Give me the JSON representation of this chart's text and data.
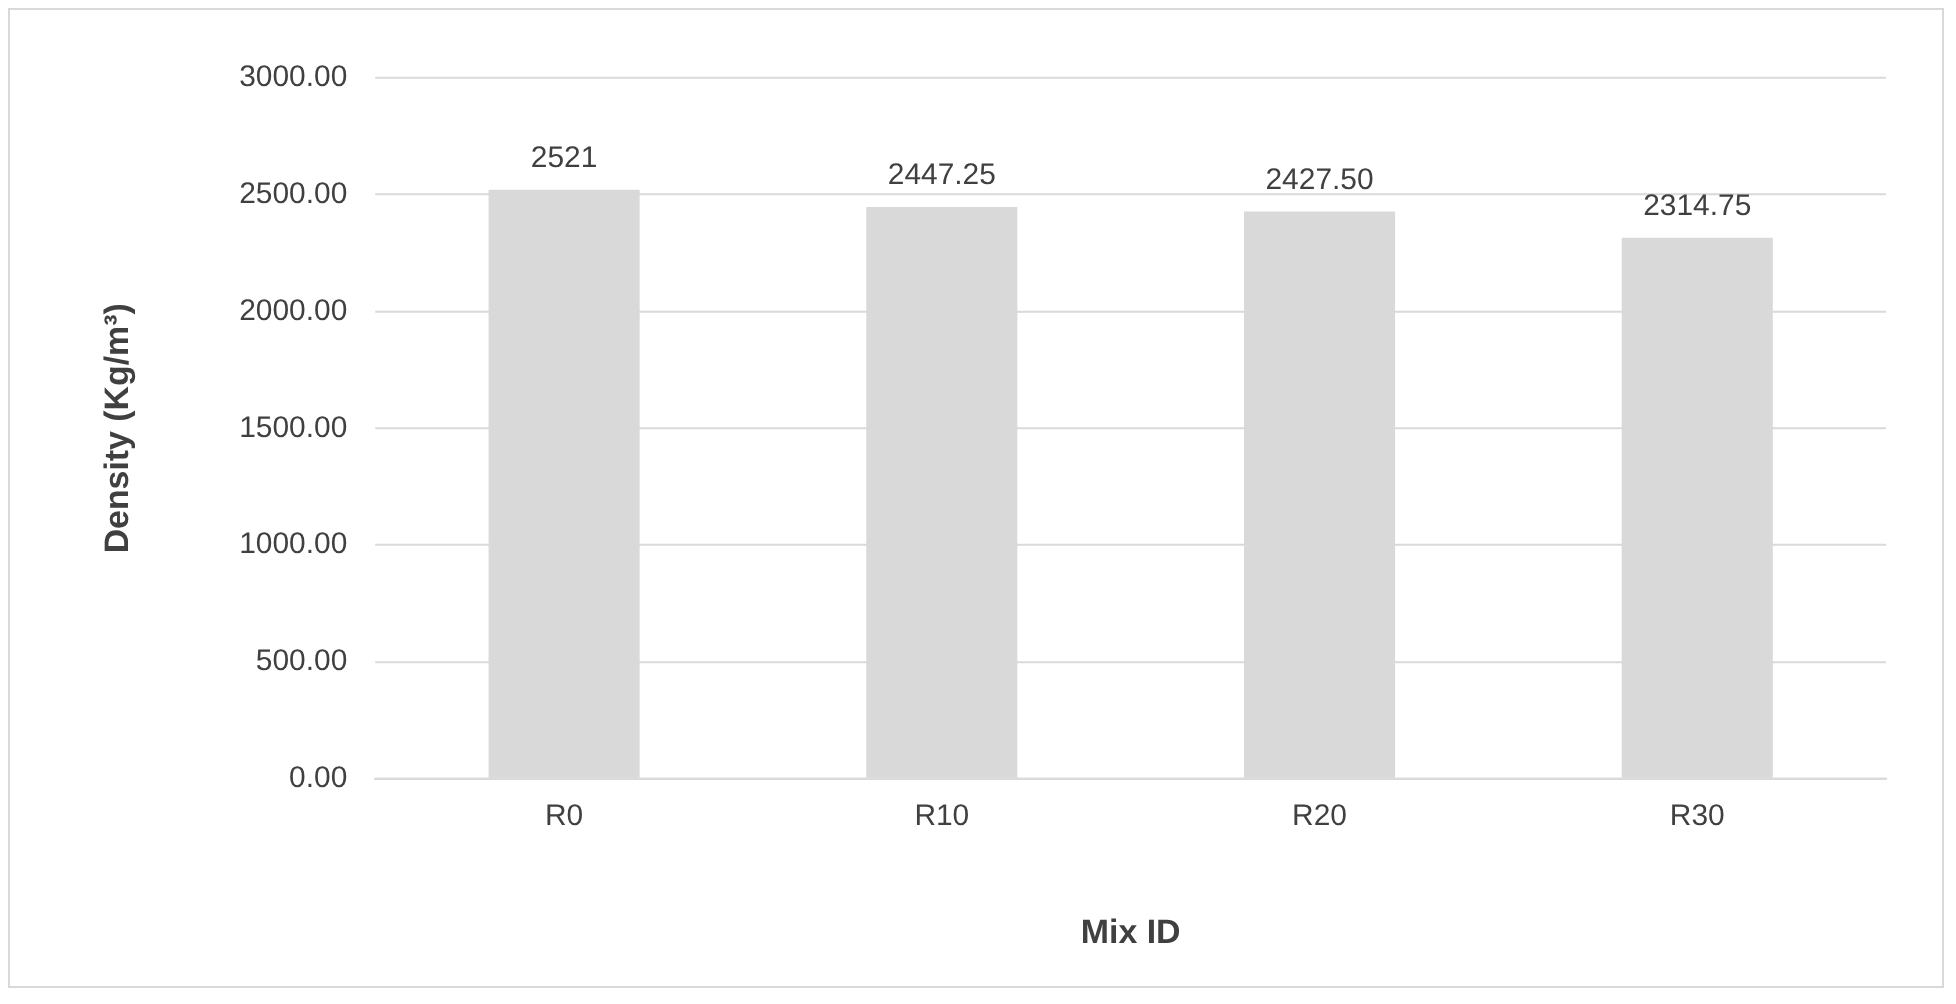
{
  "chart_data": {
    "type": "bar",
    "xlabel": "Mix ID",
    "ylabel": "Density (Kg/m³)",
    "categories": [
      "R0",
      "R10",
      "R20",
      "R30"
    ],
    "values": [
      2521,
      2447.25,
      2427.5,
      2314.75
    ],
    "value_labels": [
      "2521",
      "2447.25",
      "2427.50",
      "2314.75"
    ],
    "color": "#d9d9d9",
    "ylim": [
      0,
      3000
    ],
    "yticks": [
      {
        "value": 0,
        "label": "0.00"
      },
      {
        "value": 500,
        "label": "500.00"
      },
      {
        "value": 1000,
        "label": "1000.00"
      },
      {
        "value": 1500,
        "label": "1500.00"
      },
      {
        "value": 2000,
        "label": "2000.00"
      },
      {
        "value": 2500,
        "label": "2500.00"
      },
      {
        "value": 3000,
        "label": "3000.00"
      }
    ],
    "grid": "y",
    "legend": false
  }
}
